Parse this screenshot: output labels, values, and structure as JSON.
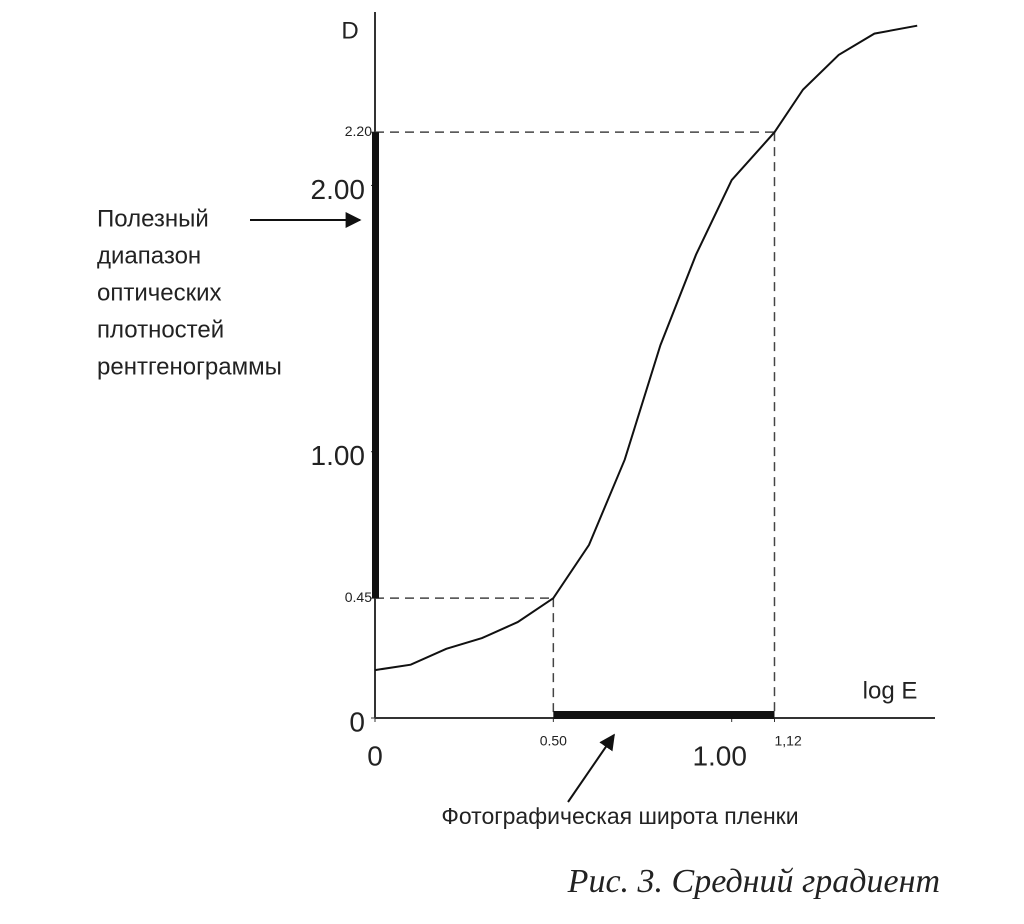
{
  "chart_data": {
    "type": "line",
    "y_label": "D",
    "x_label": "log E",
    "x": [
      0,
      0.1,
      0.2,
      0.3,
      0.4,
      0.5,
      0.6,
      0.7,
      0.8,
      0.9,
      1.0,
      1.12,
      1.2,
      1.3,
      1.4,
      1.52
    ],
    "values": [
      0.18,
      0.2,
      0.26,
      0.3,
      0.36,
      0.45,
      0.65,
      0.97,
      1.4,
      1.74,
      2.02,
      2.2,
      2.36,
      2.49,
      2.57,
      2.6
    ],
    "color": "#111111",
    "xlim": [
      0,
      1.57
    ],
    "ylim": [
      0,
      2.64
    ],
    "xticks": [
      0,
      {
        "value": 0.5,
        "label": "0.50"
      },
      {
        "value": 1,
        "label": "1.00"
      },
      {
        "value": 1.12,
        "label": "1,12"
      }
    ],
    "yticks": [
      0,
      0.45,
      {
        "value": 1,
        "label": "1.00"
      },
      {
        "value": 2,
        "label": "2.00"
      },
      {
        "value": 2.2,
        "label": "2.20"
      }
    ],
    "annotations": {
      "density_range": [
        "Полезный",
        "диапазон",
        "оптических",
        "плотностей",
        "рентгенограммы"
      ],
      "latitude": "Фотографическая широта пленки"
    },
    "caption": "Рис. 3. Средний градиент"
  }
}
